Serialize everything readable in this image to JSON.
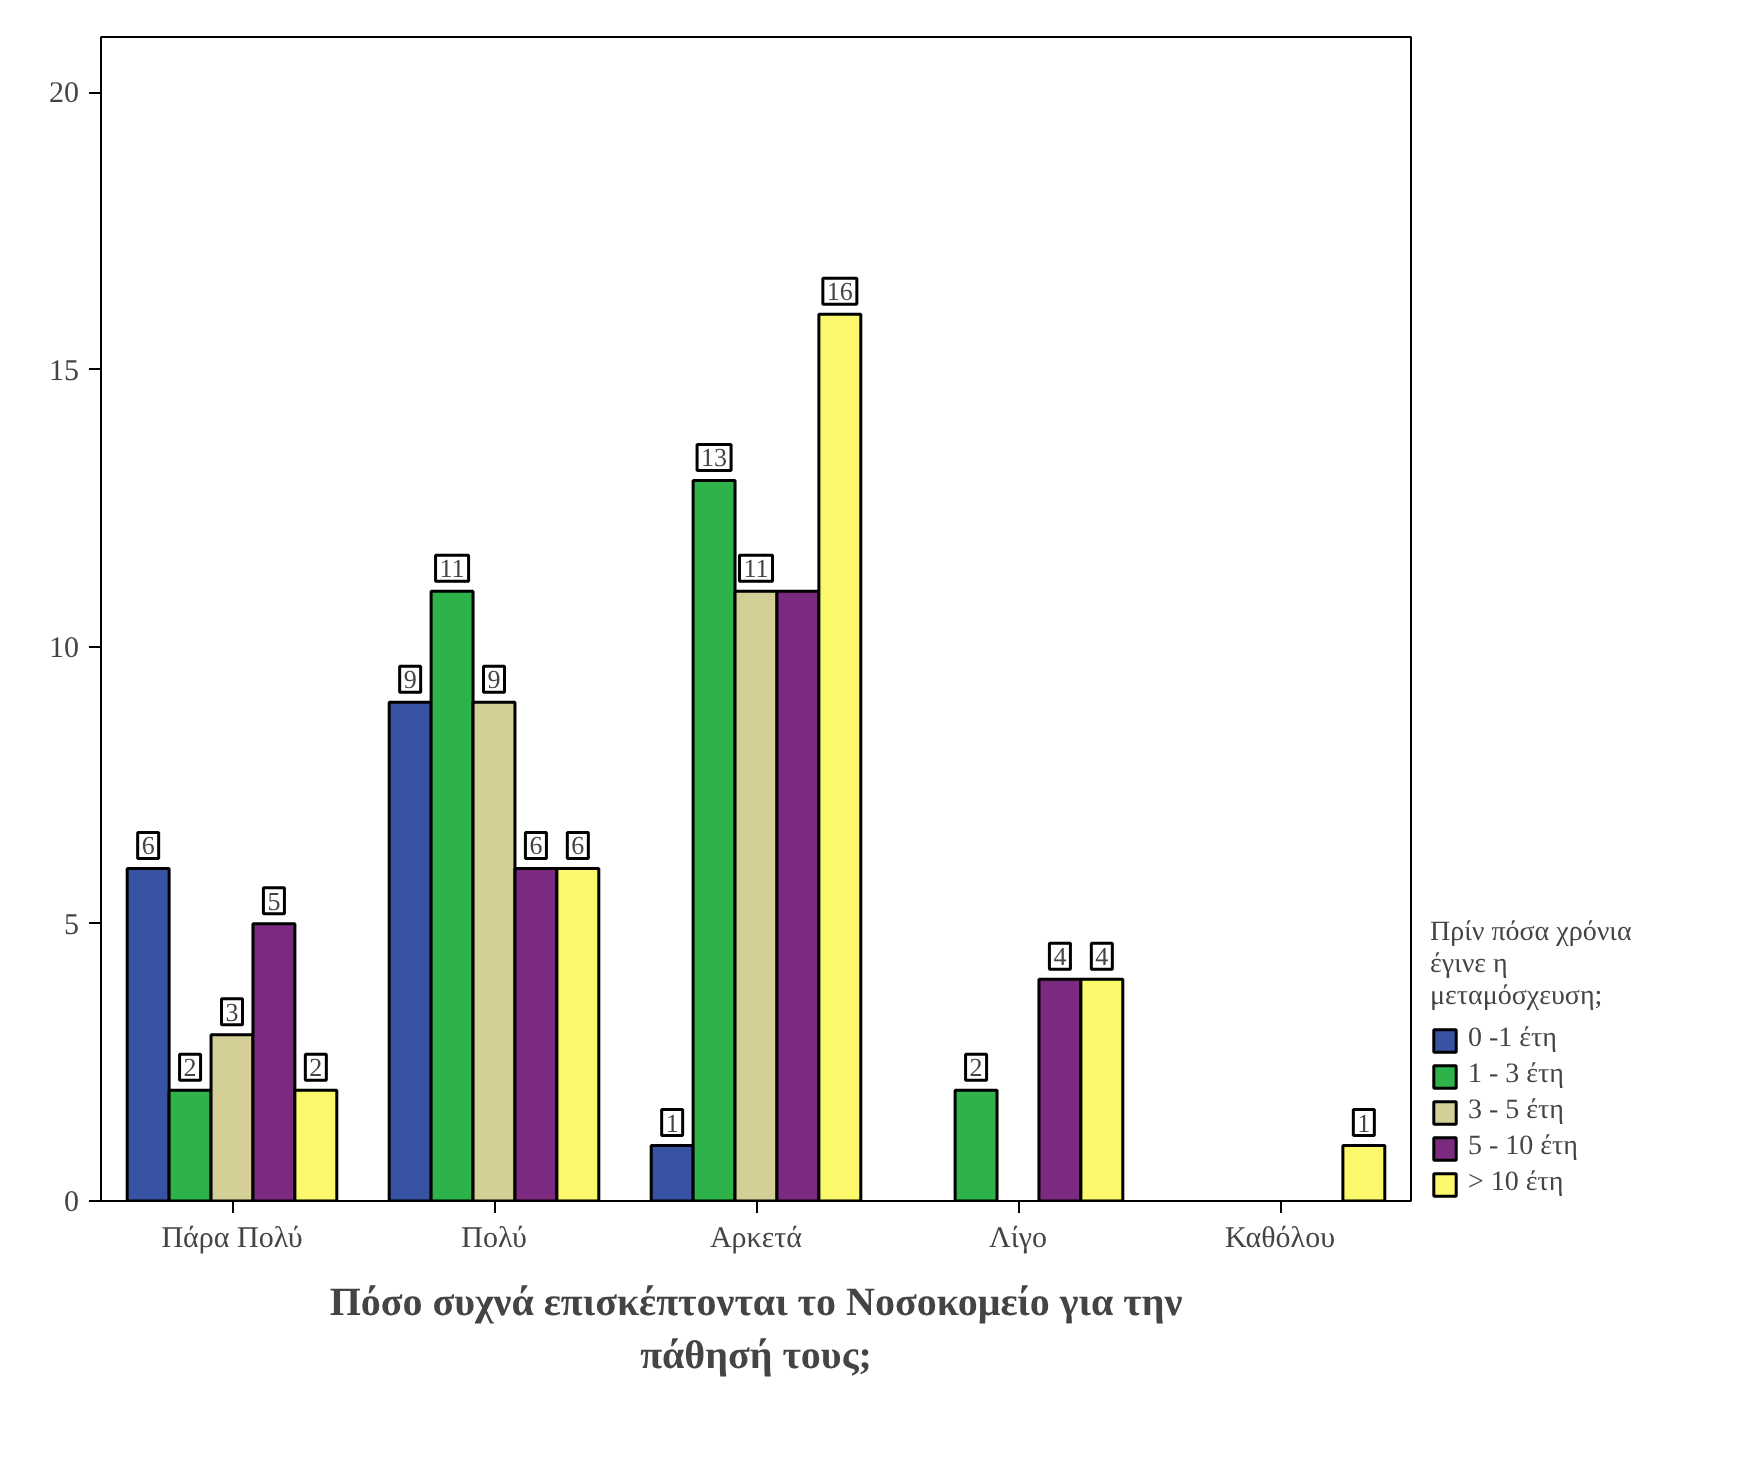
{
  "chart_data": {
    "type": "bar",
    "xlabel": "Πόσο συχνά επισκέπτονται το Νοσοκομείο για την πάθησή τους;",
    "legend_title": "Πρίν πόσα χρόνια έγινε η μεταμόσχευση;",
    "categories": [
      "Πάρα Πολύ",
      "Πολύ",
      "Αρκετά",
      "Λίγο",
      "Καθόλου"
    ],
    "series": [
      {
        "name": "0 -1 έτη",
        "color": "#3953a4",
        "values": [
          6,
          9,
          1,
          null,
          null
        ],
        "value_labels": [
          "6",
          "9",
          "1",
          null,
          null
        ]
      },
      {
        "name": "1 - 3 έτη",
        "color": "#2db34a",
        "values": [
          2,
          11,
          13,
          2,
          null
        ],
        "value_labels": [
          "2",
          "11",
          "13",
          "2",
          null
        ]
      },
      {
        "name": "3 - 5 έτη",
        "color": "#d4cf96",
        "values": [
          3,
          9,
          11,
          null,
          null
        ],
        "value_labels": [
          "3",
          "9",
          "11",
          null,
          null
        ]
      },
      {
        "name": "5 - 10 έτη",
        "color": "#7b2a7f",
        "values": [
          5,
          6,
          11,
          4,
          null
        ],
        "value_labels": [
          "5",
          "6",
          null,
          "4",
          null
        ]
      },
      {
        "name": "> 10 έτη",
        "color": "#fbf86b",
        "values": [
          2,
          6,
          16,
          4,
          1
        ],
        "value_labels": [
          "2",
          "6",
          "16",
          "4",
          "1"
        ]
      }
    ],
    "ylim": [
      0,
      21
    ],
    "yticks": [
      0,
      5,
      10,
      15,
      20
    ],
    "grid": false,
    "legend": "right"
  }
}
